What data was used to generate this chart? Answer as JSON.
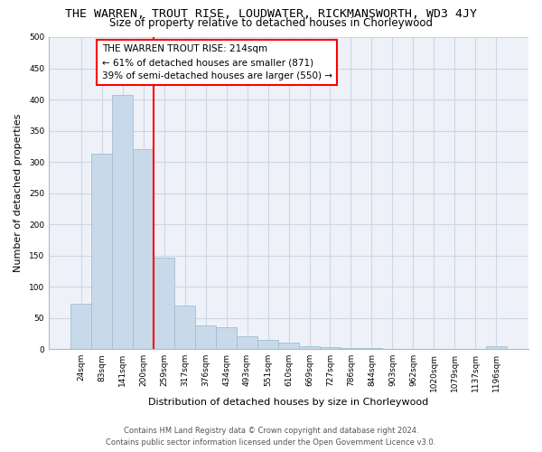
{
  "title": "THE WARREN, TROUT RISE, LOUDWATER, RICKMANSWORTH, WD3 4JY",
  "subtitle": "Size of property relative to detached houses in Chorleywood",
  "xlabel": "Distribution of detached houses by size in Chorleywood",
  "ylabel": "Number of detached properties",
  "bar_labels": [
    "24sqm",
    "83sqm",
    "141sqm",
    "200sqm",
    "259sqm",
    "317sqm",
    "376sqm",
    "434sqm",
    "493sqm",
    "551sqm",
    "610sqm",
    "669sqm",
    "727sqm",
    "786sqm",
    "844sqm",
    "903sqm",
    "962sqm",
    "1020sqm",
    "1079sqm",
    "1137sqm",
    "1196sqm"
  ],
  "bar_values": [
    72,
    313,
    407,
    320,
    147,
    70,
    38,
    35,
    20,
    15,
    10,
    5,
    3,
    1,
    1,
    0,
    0,
    0,
    0,
    0,
    4
  ],
  "bar_color": "#c8daea",
  "bar_edge_color": "#9fbdd4",
  "vline_x_index": 3,
  "vline_color": "red",
  "annotation_text": "THE WARREN TROUT RISE: 214sqm\n← 61% of detached houses are smaller (871)\n39% of semi-detached houses are larger (550) →",
  "annotation_box_color": "white",
  "annotation_box_edge": "red",
  "ylim": [
    0,
    500
  ],
  "yticks": [
    0,
    50,
    100,
    150,
    200,
    250,
    300,
    350,
    400,
    450,
    500
  ],
  "grid_color": "#cdd6e6",
  "bg_color": "#eef2f8",
  "footer_line1": "Contains HM Land Registry data © Crown copyright and database right 2024.",
  "footer_line2": "Contains public sector information licensed under the Open Government Licence v3.0.",
  "title_fontsize": 9.5,
  "subtitle_fontsize": 8.5,
  "xlabel_fontsize": 8,
  "ylabel_fontsize": 8,
  "tick_fontsize": 6.5,
  "annotation_fontsize": 7.5,
  "footer_fontsize": 6
}
